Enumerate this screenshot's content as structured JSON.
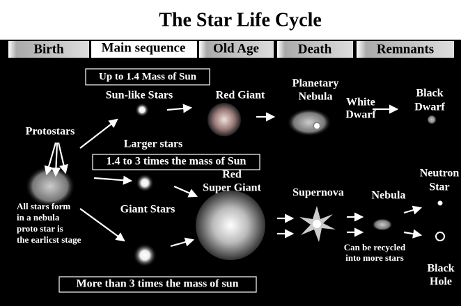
{
  "header": {
    "title": "The Star Life Cycle"
  },
  "tabs": [
    "Birth",
    "Main sequence",
    "Old Age",
    "Death",
    "Remnants"
  ],
  "boxes": {
    "up_to": "Up to  1.4 Mass of Sun",
    "mid": "1.4 to 3 times the mass of Sun",
    "more": "More than 3 times the mass of sun"
  },
  "labels": {
    "sun_like": "Sun-like Stars",
    "red_giant": "Red Giant",
    "planetary_nebula": [
      "Planetary",
      "Nebula"
    ],
    "white_dwarf": [
      "White",
      "Dwarf"
    ],
    "black_dwarf": [
      "Black",
      "Dwarf"
    ],
    "protostars": "Protostars",
    "larger_stars": "Larger stars",
    "red_super_giant": [
      "Red",
      "Super Giant"
    ],
    "supernova": "Supernova",
    "nebula": "Nebula",
    "neutron_star": [
      "Neutron",
      "Star"
    ],
    "all_stars": [
      "All stars form",
      "in a nebula",
      "proto star is",
      "the earlicst stage"
    ],
    "giant_stars": "Giant Stars",
    "recycled": [
      "Can be recycled",
      "into more stars"
    ],
    "black_hole": [
      "Black",
      "Hole"
    ]
  }
}
